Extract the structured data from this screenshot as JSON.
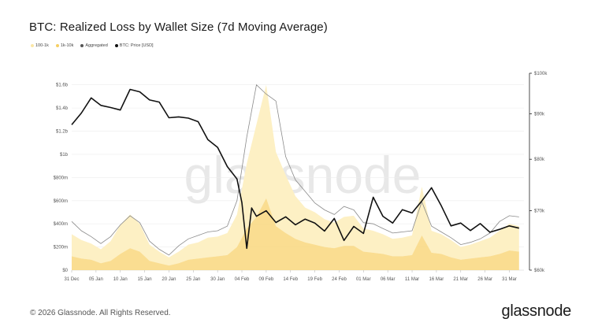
{
  "title": "BTC: Realized Loss by Wallet Size (7d Moving Average)",
  "footer": {
    "copyright": "© 2026 Glassnode. All Rights Reserved.",
    "brand": "glassnode"
  },
  "watermark": "glassnode",
  "colors": {
    "band_100_1k": "#fdf0c4",
    "band_1k_10k": "#f9d77e",
    "aggregated": "#8a8a8a",
    "btc_price": "#111111"
  },
  "chart_data": {
    "type": "area",
    "title": "BTC: Realized Loss by Wallet Size (7d Moving Average)",
    "x_ticks": [
      "31 Dec",
      "05 Jan",
      "10 Jan",
      "15 Jan",
      "20 Jan",
      "25 Jan",
      "30 Jan",
      "04 Feb",
      "09 Feb",
      "14 Feb",
      "19 Feb",
      "24 Feb",
      "01 Mar",
      "06 Mar",
      "11 Mar",
      "16 Mar",
      "21 Mar",
      "26 Mar",
      "31 Mar"
    ],
    "y_left": {
      "ticks": [
        "$0",
        "$200m",
        "$400m",
        "$600m",
        "$800m",
        "$1b",
        "$1.2b",
        "$1.4b",
        "$1.6b"
      ],
      "range": [
        0,
        1700000000
      ]
    },
    "y_right": {
      "ticks": [
        "$60k",
        "$70k",
        "$80k",
        "$90k",
        "$100k"
      ],
      "range": [
        60000,
        100000
      ],
      "scale": "log"
    },
    "legend": [
      "100-1k",
      "1k-10k",
      "Aggregated",
      "BTC: Price [USD]"
    ],
    "x_range": [
      "2025-12-31",
      "2026-04-03"
    ],
    "series": [
      {
        "name": "100-1k",
        "axis": "left",
        "kind": "stacked-area",
        "x": [
          "2025-12-31",
          "2026-01-02",
          "2026-01-04",
          "2026-01-06",
          "2026-01-08",
          "2026-01-10",
          "2026-01-12",
          "2026-01-14",
          "2026-01-16",
          "2026-01-18",
          "2026-01-20",
          "2026-01-22",
          "2026-01-24",
          "2026-01-26",
          "2026-01-28",
          "2026-01-30",
          "2026-02-01",
          "2026-02-03",
          "2026-02-05",
          "2026-02-07",
          "2026-02-09",
          "2026-02-11",
          "2026-02-13",
          "2026-02-15",
          "2026-02-17",
          "2026-02-19",
          "2026-02-21",
          "2026-02-23",
          "2026-02-25",
          "2026-02-27",
          "2026-03-01",
          "2026-03-03",
          "2026-03-05",
          "2026-03-07",
          "2026-03-09",
          "2026-03-11",
          "2026-03-13",
          "2026-03-15",
          "2026-03-17",
          "2026-03-19",
          "2026-03-21",
          "2026-03-23",
          "2026-03-25",
          "2026-03-27",
          "2026-03-29",
          "2026-03-31",
          "2026-04-02"
        ],
        "values": [
          190,
          160,
          140,
          120,
          170,
          250,
          290,
          240,
          140,
          100,
          70,
          100,
          130,
          140,
          170,
          170,
          190,
          280,
          560,
          800,
          980,
          640,
          500,
          370,
          300,
          280,
          240,
          220,
          250,
          260,
          200,
          190,
          170,
          150,
          160,
          170,
          420,
          190,
          170,
          150,
          110,
          120,
          140,
          160,
          200,
          230,
          220
        ]
      },
      {
        "name": "1k-10k",
        "axis": "left",
        "kind": "stacked-area",
        "x": [
          "2025-12-31",
          "2026-01-02",
          "2026-01-04",
          "2026-01-06",
          "2026-01-08",
          "2026-01-10",
          "2026-01-12",
          "2026-01-14",
          "2026-01-16",
          "2026-01-18",
          "2026-01-20",
          "2026-01-22",
          "2026-01-24",
          "2026-01-26",
          "2026-01-28",
          "2026-01-30",
          "2026-02-01",
          "2026-02-03",
          "2026-02-05",
          "2026-02-07",
          "2026-02-09",
          "2026-02-11",
          "2026-02-13",
          "2026-02-15",
          "2026-02-17",
          "2026-02-19",
          "2026-02-21",
          "2026-02-23",
          "2026-02-25",
          "2026-02-27",
          "2026-03-01",
          "2026-03-03",
          "2026-03-05",
          "2026-03-07",
          "2026-03-09",
          "2026-03-11",
          "2026-03-13",
          "2026-03-15",
          "2026-03-17",
          "2026-03-19",
          "2026-03-21",
          "2026-03-23",
          "2026-03-25",
          "2026-03-27",
          "2026-03-29",
          "2026-03-31",
          "2026-04-02"
        ],
        "values": [
          120,
          100,
          90,
          60,
          80,
          140,
          190,
          160,
          80,
          60,
          40,
          60,
          90,
          100,
          110,
          120,
          130,
          200,
          360,
          460,
          620,
          380,
          320,
          270,
          240,
          220,
          200,
          190,
          210,
          210,
          160,
          150,
          140,
          120,
          120,
          130,
          300,
          150,
          140,
          110,
          90,
          100,
          110,
          120,
          140,
          170,
          160
        ]
      },
      {
        "name": "Aggregated",
        "axis": "left",
        "kind": "line",
        "x": [
          "2025-12-31",
          "2026-01-02",
          "2026-01-04",
          "2026-01-06",
          "2026-01-08",
          "2026-01-10",
          "2026-01-12",
          "2026-01-14",
          "2026-01-16",
          "2026-01-18",
          "2026-01-20",
          "2026-01-22",
          "2026-01-24",
          "2026-01-26",
          "2026-01-28",
          "2026-01-30",
          "2026-02-01",
          "2026-02-03",
          "2026-02-05",
          "2026-02-07",
          "2026-02-09",
          "2026-02-11",
          "2026-02-13",
          "2026-02-15",
          "2026-02-17",
          "2026-02-19",
          "2026-02-21",
          "2026-02-23",
          "2026-02-25",
          "2026-02-27",
          "2026-03-01",
          "2026-03-03",
          "2026-03-05",
          "2026-03-07",
          "2026-03-09",
          "2026-03-11",
          "2026-03-13",
          "2026-03-15",
          "2026-03-17",
          "2026-03-19",
          "2026-03-21",
          "2026-03-23",
          "2026-03-25",
          "2026-03-27",
          "2026-03-29",
          "2026-03-31",
          "2026-04-02"
        ],
        "values": [
          420,
          340,
          290,
          230,
          290,
          390,
          470,
          410,
          250,
          180,
          130,
          210,
          270,
          300,
          330,
          340,
          380,
          600,
          1150,
          1600,
          1520,
          1460,
          980,
          780,
          680,
          580,
          520,
          480,
          550,
          520,
          410,
          400,
          360,
          320,
          330,
          340,
          590,
          380,
          330,
          280,
          220,
          240,
          270,
          320,
          420,
          470,
          460
        ]
      },
      {
        "name": "BTC: Price [USD]",
        "axis": "right",
        "kind": "line",
        "x": [
          "2025-12-31",
          "2026-01-02",
          "2026-01-04",
          "2026-01-06",
          "2026-01-08",
          "2026-01-10",
          "2026-01-12",
          "2026-01-14",
          "2026-01-16",
          "2026-01-18",
          "2026-01-20",
          "2026-01-22",
          "2026-01-24",
          "2026-01-26",
          "2026-01-28",
          "2026-01-30",
          "2026-02-01",
          "2026-02-03",
          "2026-02-04",
          "2026-02-05",
          "2026-02-06",
          "2026-02-07",
          "2026-02-09",
          "2026-02-11",
          "2026-02-13",
          "2026-02-15",
          "2026-02-17",
          "2026-02-19",
          "2026-02-21",
          "2026-02-23",
          "2026-02-25",
          "2026-02-27",
          "2026-03-01",
          "2026-03-03",
          "2026-03-05",
          "2026-03-07",
          "2026-03-09",
          "2026-03-11",
          "2026-03-13",
          "2026-03-15",
          "2026-03-17",
          "2026-03-19",
          "2026-03-21",
          "2026-03-23",
          "2026-03-25",
          "2026-03-27",
          "2026-03-29",
          "2026-03-31",
          "2026-04-02"
        ],
        "values": [
          87500,
          90200,
          93800,
          92000,
          91500,
          90900,
          95900,
          95300,
          93300,
          92800,
          89100,
          89300,
          89000,
          88200,
          84200,
          82500,
          78500,
          76000,
          71500,
          63500,
          70500,
          69000,
          70000,
          67900,
          68900,
          67500,
          68500,
          67800,
          66400,
          68600,
          64800,
          67200,
          66000,
          72500,
          69000,
          67800,
          70200,
          69600,
          71800,
          74300,
          70900,
          67300,
          67800,
          66500,
          67700,
          66200,
          66700,
          67300,
          66900
        ]
      }
    ]
  }
}
